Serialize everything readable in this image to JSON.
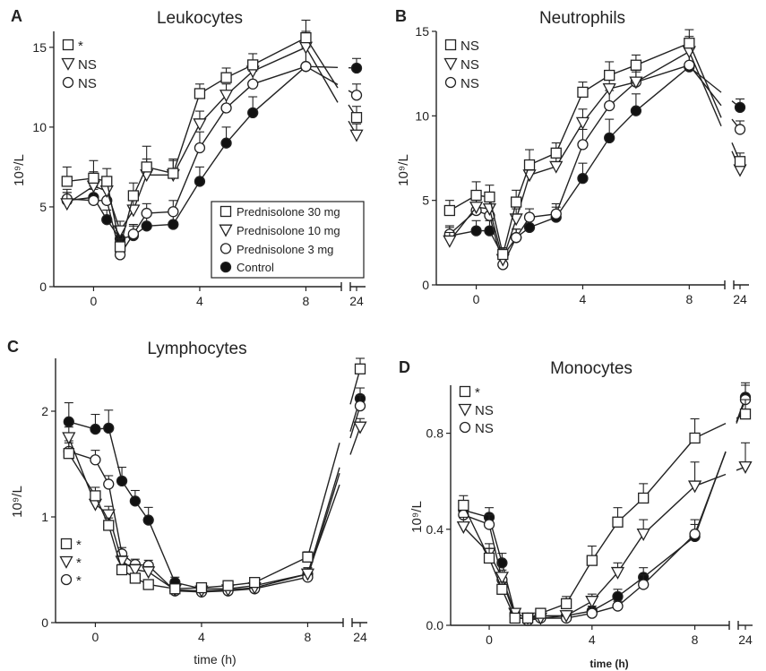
{
  "legend_series": [
    {
      "name": "Prednisolone 30 mg",
      "marker": "square"
    },
    {
      "name": "Prednisolone 10 mg",
      "marker": "triangle"
    },
    {
      "name": "Prednisolone 3 mg",
      "marker": "circle"
    },
    {
      "name": "Control",
      "marker": "filled-circle"
    }
  ],
  "chart_data": [
    {
      "panel": "A",
      "type": "line",
      "title": "Leukocytes",
      "ylabel": "10⁹/L",
      "xlabel": "",
      "ylim": [
        0,
        16
      ],
      "yticks": [
        0,
        5,
        10,
        15
      ],
      "xticks": [
        "0",
        "4",
        "8",
        "24"
      ],
      "axis_break": "between 8 and 24",
      "sig_labels": [
        "*",
        "NS",
        "NS"
      ],
      "sig_position": "top-left",
      "series": [
        {
          "name": "Prednisolone 30 mg",
          "marker": "square",
          "x": [
            -1,
            0,
            0.5,
            1,
            1.5,
            2,
            3,
            4,
            5,
            6,
            8,
            24
          ],
          "y": [
            6.6,
            6.8,
            6.6,
            2.5,
            5.7,
            7.5,
            7.1,
            12.1,
            13.1,
            13.9,
            15.6,
            10.6
          ],
          "err": [
            0.9,
            1.1,
            0.8,
            0.5,
            0.8,
            1.3,
            0.9,
            0.6,
            0.6,
            0.7,
            1.1,
            0.7
          ]
        },
        {
          "name": "Prednisolone 10 mg",
          "marker": "triangle",
          "x": [
            -1,
            0,
            0.5,
            1,
            1.5,
            2,
            3,
            4,
            5,
            6,
            8,
            24
          ],
          "y": [
            5.2,
            6.3,
            6.0,
            3.5,
            4.8,
            7.0,
            7.0,
            10.2,
            12.0,
            13.5,
            15.0,
            9.5
          ],
          "err": [
            0.7,
            0.9,
            0.8,
            0.6,
            0.7,
            1.0,
            0.9,
            0.8,
            0.7,
            0.7,
            1.0,
            0.7
          ]
        },
        {
          "name": "Prednisolone 3 mg",
          "marker": "circle",
          "x": [
            -1,
            0,
            0.5,
            1,
            1.5,
            2,
            3,
            4,
            5,
            6,
            8,
            24
          ],
          "y": [
            5.5,
            5.4,
            5.4,
            2.0,
            3.3,
            4.6,
            4.7,
            8.7,
            11.2,
            12.7,
            13.8,
            12.0
          ],
          "err": [
            0.6,
            0.7,
            0.7,
            0.4,
            0.6,
            0.6,
            0.7,
            1.0,
            1.0,
            0.8,
            1.2,
            0.7
          ]
        },
        {
          "name": "Control",
          "marker": "filled-circle",
          "x": [
            -1,
            0,
            0.5,
            1,
            1.5,
            2,
            3,
            4,
            5,
            6,
            8,
            24
          ],
          "y": [
            5.4,
            5.6,
            4.2,
            3.0,
            3.2,
            3.8,
            3.9,
            6.6,
            9.0,
            10.9,
            13.8,
            13.7
          ],
          "err": [
            0.5,
            0.7,
            0.6,
            0.5,
            0.6,
            0.7,
            0.7,
            0.9,
            1.0,
            1.0,
            1.2,
            0.6
          ]
        }
      ]
    },
    {
      "panel": "B",
      "type": "line",
      "title": "Neutrophils",
      "ylabel": "10⁹/L",
      "xlabel": "",
      "ylim": [
        0,
        15
      ],
      "yticks": [
        0,
        5,
        10,
        15
      ],
      "xticks": [
        "0",
        "4",
        "8",
        "24"
      ],
      "axis_break": "between 8 and 24",
      "sig_labels": [
        "NS",
        "NS",
        "NS"
      ],
      "sig_position": "top-left",
      "series": [
        {
          "name": "Prednisolone 30 mg",
          "marker": "square",
          "x": [
            -1,
            0,
            0.5,
            1,
            1.5,
            2,
            3,
            4,
            5,
            6,
            8,
            24
          ],
          "y": [
            4.4,
            5.3,
            5.2,
            1.8,
            4.9,
            7.1,
            7.8,
            11.4,
            12.4,
            13.0,
            14.3,
            7.3
          ],
          "err": [
            0.6,
            0.8,
            0.7,
            0.4,
            0.7,
            0.9,
            0.6,
            0.6,
            0.8,
            0.6,
            0.8,
            0.5
          ]
        },
        {
          "name": "Prednisolone 10 mg",
          "marker": "triangle",
          "x": [
            -1,
            0,
            0.5,
            1,
            1.5,
            2,
            3,
            4,
            5,
            6,
            8,
            24
          ],
          "y": [
            2.6,
            4.6,
            4.5,
            1.5,
            3.9,
            6.5,
            7.0,
            9.6,
            11.6,
            12.0,
            13.8,
            6.8
          ],
          "err": [
            0.5,
            0.7,
            0.7,
            0.4,
            0.6,
            0.8,
            0.8,
            0.8,
            0.7,
            0.6,
            0.9,
            0.5
          ]
        },
        {
          "name": "Prednisolone 3 mg",
          "marker": "circle",
          "x": [
            -1,
            0,
            0.5,
            1,
            1.5,
            2,
            3,
            4,
            5,
            6,
            8,
            24
          ],
          "y": [
            3.0,
            4.4,
            4.1,
            1.2,
            2.8,
            4.0,
            4.2,
            8.3,
            10.6,
            12.0,
            13.0,
            9.2
          ],
          "err": [
            0.5,
            0.6,
            0.6,
            0.3,
            0.5,
            0.5,
            0.6,
            0.9,
            0.9,
            0.7,
            1.0,
            0.5
          ]
        },
        {
          "name": "Control",
          "marker": "filled-circle",
          "x": [
            -1,
            0,
            0.5,
            1,
            1.5,
            2,
            3,
            4,
            5,
            6,
            8,
            24
          ],
          "y": [
            2.9,
            3.2,
            3.2,
            1.7,
            2.8,
            3.4,
            4.0,
            6.3,
            8.7,
            10.3,
            12.9,
            10.5
          ],
          "err": [
            0.5,
            0.6,
            0.6,
            0.4,
            0.5,
            0.6,
            0.6,
            0.9,
            1.1,
            1.0,
            1.3,
            0.5
          ]
        }
      ]
    },
    {
      "panel": "C",
      "type": "line",
      "title": "Lymphocytes",
      "ylabel": "10⁹/L",
      "xlabel": "time (h)",
      "ylim": [
        0,
        2.5
      ],
      "yticks": [
        0,
        1,
        2
      ],
      "xticks": [
        "0",
        "4",
        "8",
        "24"
      ],
      "axis_break": "between 8 and 24",
      "sig_labels": [
        "*",
        "*",
        "*"
      ],
      "sig_position": "bottom-left",
      "series": [
        {
          "name": "Prednisolone 30 mg",
          "marker": "square",
          "x": [
            -1,
            0,
            0.5,
            1,
            1.5,
            2,
            3,
            4,
            5,
            6,
            8,
            24
          ],
          "y": [
            1.6,
            1.2,
            0.92,
            0.5,
            0.42,
            0.36,
            0.32,
            0.33,
            0.35,
            0.38,
            0.62,
            2.4
          ],
          "err": [
            0.1,
            0.08,
            0.07,
            0.05,
            0.04,
            0.04,
            0.04,
            0.04,
            0.04,
            0.04,
            0.05,
            0.1
          ]
        },
        {
          "name": "Prednisolone 10 mg",
          "marker": "triangle",
          "x": [
            -1,
            0,
            0.5,
            1,
            1.5,
            2,
            3,
            4,
            5,
            6,
            8,
            24
          ],
          "y": [
            1.75,
            1.12,
            1.02,
            0.58,
            0.5,
            0.48,
            0.31,
            0.3,
            0.31,
            0.33,
            0.46,
            1.85
          ],
          "err": [
            0.1,
            0.08,
            0.08,
            0.05,
            0.05,
            0.05,
            0.04,
            0.04,
            0.04,
            0.04,
            0.05,
            0.08
          ]
        },
        {
          "name": "Prednisolone 3 mg",
          "marker": "circle",
          "x": [
            -1,
            0,
            0.5,
            1,
            1.5,
            2,
            3,
            4,
            5,
            6,
            8,
            24
          ],
          "y": [
            1.62,
            1.54,
            1.31,
            0.65,
            0.55,
            0.54,
            0.3,
            0.29,
            0.3,
            0.32,
            0.43,
            2.05
          ],
          "err": [
            0.1,
            0.09,
            0.08,
            0.06,
            0.05,
            0.05,
            0.04,
            0.04,
            0.04,
            0.04,
            0.05,
            0.1
          ]
        },
        {
          "name": "Control",
          "marker": "filled-circle",
          "x": [
            -1,
            0,
            0.5,
            1,
            1.5,
            2,
            3,
            4,
            5,
            6,
            8,
            24
          ],
          "y": [
            1.9,
            1.83,
            1.84,
            1.34,
            1.15,
            0.97,
            0.38,
            0.32,
            0.32,
            0.35,
            0.46,
            2.12
          ],
          "err": [
            0.18,
            0.14,
            0.17,
            0.13,
            0.1,
            0.12,
            0.05,
            0.04,
            0.04,
            0.05,
            0.06,
            0.1
          ]
        }
      ]
    },
    {
      "panel": "D",
      "type": "line",
      "title": "Monocytes",
      "ylabel": "10⁹/L",
      "xlabel": "time (h)",
      "ylim": [
        0,
        1.0
      ],
      "yticks": [
        0.0,
        0.4,
        0.8
      ],
      "ytick_labels": [
        "0.0",
        "0.4",
        "0.8"
      ],
      "xticks": [
        "0",
        "4",
        "8",
        "24"
      ],
      "axis_break": "between 8 and 24",
      "sig_labels": [
        "*",
        "NS",
        "NS"
      ],
      "sig_position": "top-left",
      "series": [
        {
          "name": "Prednisolone 30 mg",
          "marker": "square",
          "x": [
            -1,
            0,
            0.5,
            1,
            1.5,
            2,
            3,
            4,
            5,
            6,
            8,
            24
          ],
          "y": [
            0.5,
            0.28,
            0.15,
            0.03,
            0.03,
            0.05,
            0.09,
            0.27,
            0.43,
            0.53,
            0.78,
            0.88
          ],
          "err": [
            0.04,
            0.04,
            0.03,
            0.02,
            0.02,
            0.02,
            0.03,
            0.06,
            0.06,
            0.06,
            0.08,
            0.06
          ]
        },
        {
          "name": "Prednisolone 10 mg",
          "marker": "triangle",
          "x": [
            -1,
            0,
            0.5,
            1,
            1.5,
            2,
            3,
            4,
            5,
            6,
            8,
            24
          ],
          "y": [
            0.41,
            0.3,
            0.2,
            0.05,
            0.03,
            0.03,
            0.04,
            0.1,
            0.22,
            0.38,
            0.58,
            0.66
          ],
          "err": [
            0.04,
            0.04,
            0.03,
            0.02,
            0.02,
            0.02,
            0.02,
            0.03,
            0.04,
            0.06,
            0.1,
            0.1
          ]
        },
        {
          "name": "Prednisolone 3 mg",
          "marker": "circle",
          "x": [
            -1,
            0,
            0.5,
            1,
            1.5,
            2,
            3,
            4,
            5,
            6,
            8,
            24
          ],
          "y": [
            0.46,
            0.42,
            0.19,
            0.04,
            0.02,
            0.03,
            0.03,
            0.05,
            0.08,
            0.17,
            0.38,
            0.94
          ],
          "err": [
            0.04,
            0.04,
            0.03,
            0.02,
            0.02,
            0.02,
            0.02,
            0.02,
            0.02,
            0.04,
            0.06,
            0.06
          ]
        },
        {
          "name": "Control",
          "marker": "filled-circle",
          "x": [
            -1,
            0,
            0.5,
            1,
            1.5,
            2,
            3,
            4,
            5,
            6,
            8,
            24
          ],
          "y": [
            0.48,
            0.45,
            0.26,
            0.05,
            0.03,
            0.04,
            0.04,
            0.06,
            0.12,
            0.2,
            0.37,
            0.95
          ],
          "err": [
            0.04,
            0.04,
            0.04,
            0.02,
            0.02,
            0.02,
            0.02,
            0.02,
            0.03,
            0.04,
            0.05,
            0.06
          ]
        }
      ]
    }
  ]
}
